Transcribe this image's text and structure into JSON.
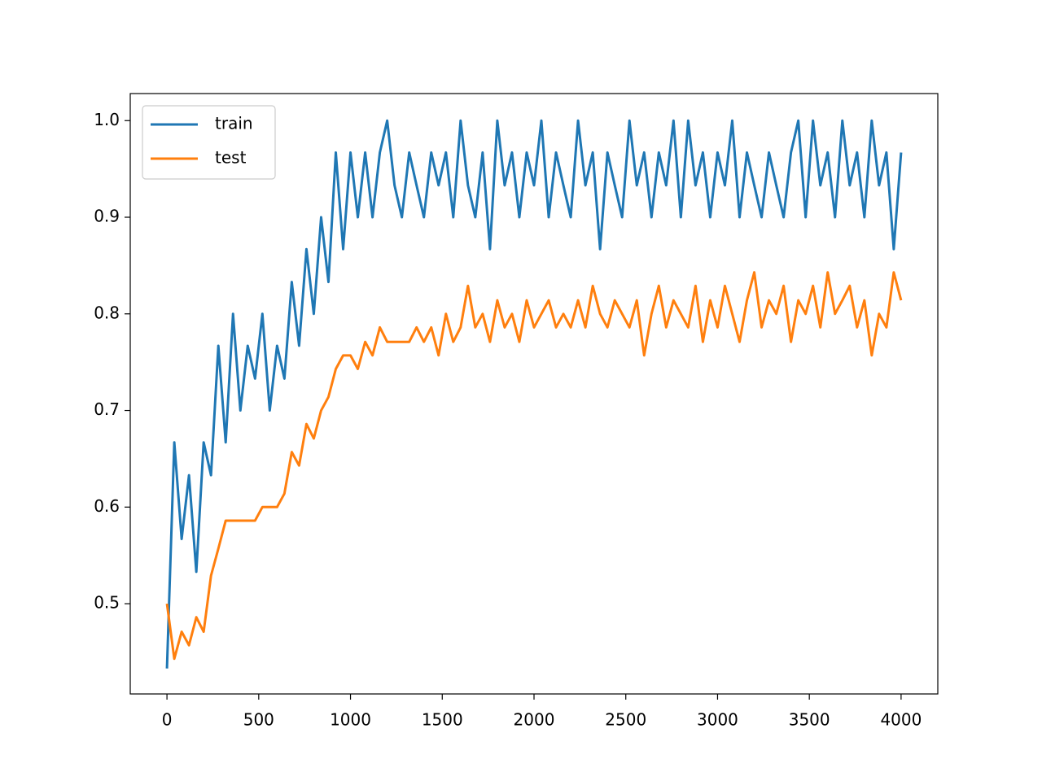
{
  "chart_data": {
    "type": "line",
    "x": [
      0,
      40,
      80,
      120,
      160,
      200,
      240,
      280,
      320,
      360,
      400,
      440,
      480,
      520,
      560,
      600,
      640,
      680,
      720,
      760,
      800,
      840,
      880,
      920,
      960,
      1000,
      1040,
      1080,
      1120,
      1160,
      1200,
      1240,
      1280,
      1320,
      1360,
      1400,
      1440,
      1480,
      1520,
      1560,
      1600,
      1640,
      1680,
      1720,
      1760,
      1800,
      1840,
      1880,
      1920,
      1960,
      2000,
      2040,
      2080,
      2120,
      2160,
      2200,
      2240,
      2280,
      2320,
      2360,
      2400,
      2440,
      2480,
      2520,
      2560,
      2600,
      2640,
      2680,
      2720,
      2760,
      2800,
      2840,
      2880,
      2920,
      2960,
      3000,
      3040,
      3080,
      3120,
      3160,
      3200,
      3240,
      3280,
      3320,
      3360,
      3400,
      3440,
      3480,
      3520,
      3560,
      3600,
      3640,
      3680,
      3720,
      3760,
      3800,
      3840,
      3880,
      3920,
      3960,
      4000
    ],
    "series": [
      {
        "name": "train",
        "color": "#1f77b4",
        "values": [
          0.433,
          0.667,
          0.567,
          0.633,
          0.533,
          0.667,
          0.633,
          0.767,
          0.667,
          0.8,
          0.7,
          0.767,
          0.733,
          0.8,
          0.7,
          0.767,
          0.733,
          0.833,
          0.767,
          0.867,
          0.8,
          0.9,
          0.833,
          0.967,
          0.867,
          0.967,
          0.9,
          0.967,
          0.9,
          0.967,
          1.0,
          0.933,
          0.9,
          0.967,
          0.933,
          0.9,
          0.967,
          0.933,
          0.967,
          0.9,
          1.0,
          0.933,
          0.9,
          0.967,
          0.867,
          1.0,
          0.933,
          0.967,
          0.9,
          0.967,
          0.933,
          1.0,
          0.9,
          0.967,
          0.933,
          0.9,
          1.0,
          0.933,
          0.967,
          0.867,
          0.967,
          0.933,
          0.9,
          1.0,
          0.933,
          0.967,
          0.9,
          0.967,
          0.933,
          1.0,
          0.9,
          1.0,
          0.933,
          0.967,
          0.9,
          0.967,
          0.933,
          1.0,
          0.9,
          0.967,
          0.933,
          0.9,
          0.967,
          0.933,
          0.9,
          0.967,
          1.0,
          0.9,
          1.0,
          0.933,
          0.967,
          0.9,
          1.0,
          0.933,
          0.967,
          0.9,
          1.0,
          0.933,
          0.967,
          0.867,
          0.967
        ]
      },
      {
        "name": "test",
        "color": "#ff7f0e",
        "values": [
          0.5,
          0.443,
          0.471,
          0.457,
          0.486,
          0.471,
          0.529,
          0.557,
          0.586,
          0.586,
          0.586,
          0.586,
          0.586,
          0.6,
          0.6,
          0.6,
          0.614,
          0.657,
          0.643,
          0.686,
          0.671,
          0.7,
          0.714,
          0.743,
          0.757,
          0.757,
          0.743,
          0.771,
          0.757,
          0.786,
          0.771,
          0.771,
          0.771,
          0.771,
          0.786,
          0.771,
          0.786,
          0.757,
          0.8,
          0.771,
          0.786,
          0.829,
          0.786,
          0.8,
          0.771,
          0.814,
          0.786,
          0.8,
          0.771,
          0.814,
          0.786,
          0.8,
          0.814,
          0.786,
          0.8,
          0.786,
          0.814,
          0.786,
          0.829,
          0.8,
          0.786,
          0.814,
          0.8,
          0.786,
          0.814,
          0.757,
          0.8,
          0.829,
          0.786,
          0.814,
          0.8,
          0.786,
          0.829,
          0.771,
          0.814,
          0.786,
          0.829,
          0.8,
          0.771,
          0.814,
          0.843,
          0.786,
          0.814,
          0.8,
          0.829,
          0.771,
          0.814,
          0.8,
          0.829,
          0.786,
          0.843,
          0.8,
          0.814,
          0.829,
          0.786,
          0.814,
          0.757,
          0.8,
          0.786,
          0.843,
          0.814
        ]
      }
    ],
    "xlim": [
      -200,
      4200
    ],
    "xticks": [
      0,
      500,
      1000,
      1500,
      2000,
      2500,
      3000,
      3500,
      4000
    ],
    "ylim": [
      0.4066,
      1.028
    ],
    "yticks": [
      0.5,
      0.6,
      0.7,
      0.8,
      0.9,
      {
        "value": 1,
        "label": "1.0"
      }
    ],
    "legend": "upper left",
    "grid": false
  }
}
